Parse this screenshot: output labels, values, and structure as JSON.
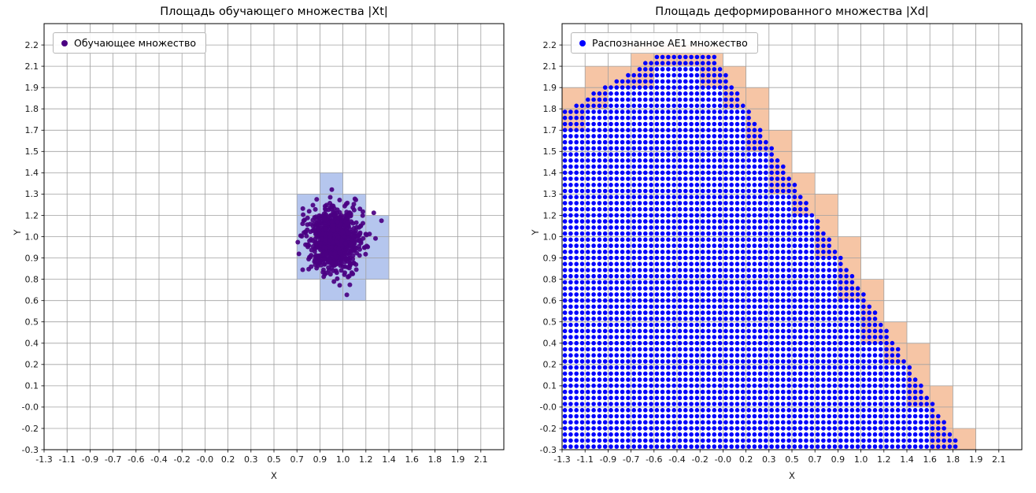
{
  "figure": {
    "background": "#ffffff",
    "grid_color": "#a0a0a0",
    "axes_border_color": "#000000"
  },
  "chart_data": [
    {
      "type": "scatter",
      "title": "Площадь обучающего множества |Xt|",
      "xlabel": "X",
      "ylabel": "Y",
      "legend": {
        "label": "Обучающее множество",
        "marker_color": "#4b0082"
      },
      "xlim": [
        -1.3,
        2.2789
      ],
      "ylim": [
        -0.3,
        2.3316
      ],
      "grid": true,
      "grid_color": "#a0a0a0",
      "x_tick_labels": [
        "-1.3",
        "-1.1",
        "-0.9",
        "-0.7",
        "-0.6",
        "-0.4",
        "-0.2",
        "-0.0",
        "0.2",
        "0.3",
        "0.5",
        "0.7",
        "0.9",
        "1.0",
        "1.2",
        "1.4",
        "1.6",
        "1.8",
        "1.9",
        "2.1"
      ],
      "y_tick_labels": [
        "-0.3",
        "-0.2",
        "-0.0",
        "0.1",
        "0.2",
        "0.4",
        "0.5",
        "0.6",
        "0.8",
        "0.9",
        "1.0",
        "1.2",
        "1.3",
        "1.4",
        "1.5",
        "1.7",
        "1.8",
        "1.9",
        "2.1",
        "2.2"
      ],
      "grid_cells": {
        "nx": 20,
        "ny": 20
      },
      "highlight_color": "#b5c6ee",
      "highlighted_cells": [
        [
          12,
          12
        ],
        [
          11,
          11
        ],
        [
          12,
          11
        ],
        [
          13,
          11
        ],
        [
          11,
          10
        ],
        [
          12,
          10
        ],
        [
          13,
          10
        ],
        [
          14,
          10
        ],
        [
          11,
          9
        ],
        [
          12,
          9
        ],
        [
          13,
          9
        ],
        [
          14,
          9
        ],
        [
          11,
          8
        ],
        [
          12,
          8
        ],
        [
          13,
          8
        ],
        [
          14,
          8
        ],
        [
          12,
          7
        ],
        [
          13,
          7
        ]
      ],
      "cluster": {
        "cx": 0.96,
        "cy": 1.0,
        "sx": 0.105,
        "sy": 0.105,
        "n": 800,
        "seed": 42,
        "point_color": "#4b0082",
        "point_radius": 3
      }
    },
    {
      "type": "scatter_grid",
      "title": "Площадь деформированного множества |Xd|",
      "xlabel": "X",
      "ylabel": "Y",
      "legend": {
        "label": "Распознанное AE1 множество",
        "marker_color": "#0000ff"
      },
      "xlim": [
        -1.3,
        2.2789
      ],
      "ylim": [
        -0.3,
        2.3316
      ],
      "grid": true,
      "grid_color": "#a0a0a0",
      "x_tick_labels": [
        "-1.3",
        "-1.1",
        "-0.9",
        "-0.7",
        "-0.6",
        "-0.4",
        "-0.2",
        "-0.0",
        "0.2",
        "0.3",
        "0.5",
        "0.7",
        "0.9",
        "1.0",
        "1.2",
        "1.4",
        "1.6",
        "1.8",
        "1.9",
        "2.1"
      ],
      "y_tick_labels": [
        "-0.3",
        "-0.2",
        "-0.0",
        "0.1",
        "0.2",
        "0.4",
        "0.5",
        "0.6",
        "0.8",
        "0.9",
        "1.0",
        "1.2",
        "1.3",
        "1.4",
        "1.5",
        "1.7",
        "1.8",
        "1.9",
        "2.1",
        "2.2"
      ],
      "grid_cells": {
        "nx": 20,
        "ny": 20
      },
      "partial_cell_color": "#f6c5a5",
      "region": {
        "left_x0": -1.3,
        "left_y0": 1.79,
        "left_slope": 0.46,
        "flat_x_start": -0.5,
        "flat_top": 2.15,
        "right_x0": -0.12,
        "right_slope": -1.27
      },
      "grid_points": {
        "step_x": 0.0447,
        "step_y": 0.0376,
        "point_color": "#0000ff",
        "point_radius": 2.8
      }
    }
  ]
}
